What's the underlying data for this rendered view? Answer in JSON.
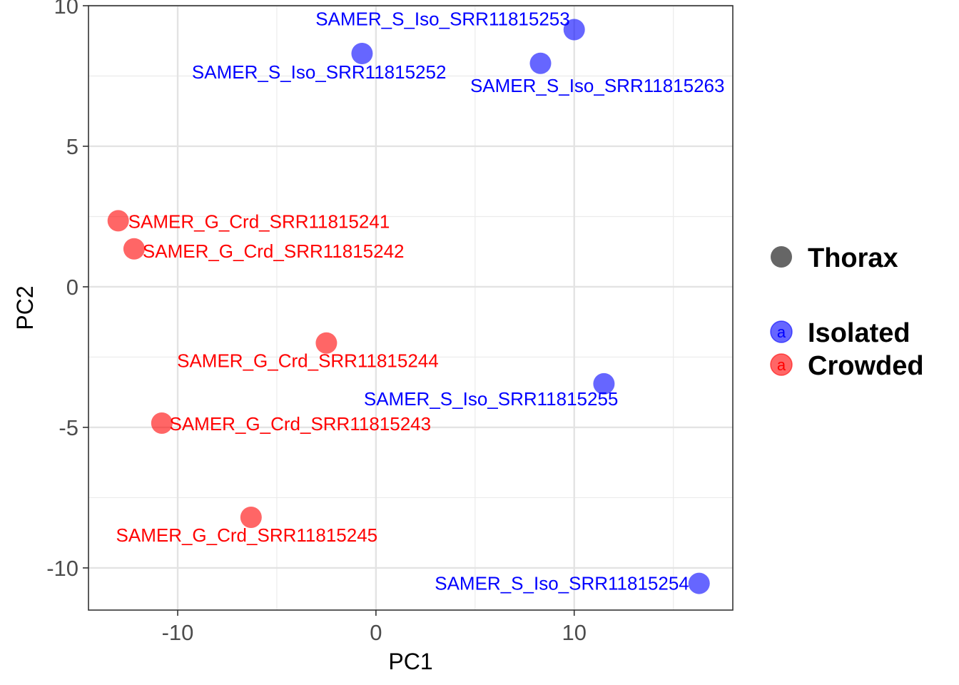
{
  "chart_data": {
    "type": "scatter",
    "xlabel": "PC1",
    "ylabel": "PC2",
    "xlim": [
      -14.5,
      18
    ],
    "ylim": [
      -11.5,
      10
    ],
    "xticks": [
      -10,
      0,
      10
    ],
    "yticks": [
      -10,
      -5,
      0,
      5,
      10
    ],
    "xtick_labels": [
      "-10",
      "0",
      "10"
    ],
    "ytick_labels": [
      "-10",
      "-5",
      "0",
      "5",
      "10"
    ],
    "grid": true,
    "legend": {
      "position": "right",
      "shape_title": "Thorax",
      "groups": [
        {
          "name": "Isolated",
          "color": "#0000ff",
          "key": "a"
        },
        {
          "name": "Crowded",
          "color": "#ff0000",
          "key": "a"
        }
      ]
    },
    "points": [
      {
        "label": "SAMER_S_Iso_SRR11815253",
        "group": "Isolated",
        "x": 10.0,
        "y": 9.15
      },
      {
        "label": "SAMER_S_Iso_SRR11815252",
        "group": "Isolated",
        "x": -0.7,
        "y": 8.3
      },
      {
        "label": "SAMER_S_Iso_SRR11815263",
        "group": "Isolated",
        "x": 8.3,
        "y": 7.95
      },
      {
        "label": "SAMER_G_Crd_SRR11815241",
        "group": "Crowded",
        "x": -13.0,
        "y": 2.35
      },
      {
        "label": "SAMER_G_Crd_SRR11815242",
        "group": "Crowded",
        "x": -12.2,
        "y": 1.35
      },
      {
        "label": "SAMER_G_Crd_SRR11815244",
        "group": "Crowded",
        "x": -2.5,
        "y": -2.0
      },
      {
        "label": "SAMER_S_Iso_SRR11815255",
        "group": "Isolated",
        "x": 11.5,
        "y": -3.45
      },
      {
        "label": "SAMER_G_Crd_SRR11815243",
        "group": "Crowded",
        "x": -10.8,
        "y": -4.85
      },
      {
        "label": "SAMER_G_Crd_SRR11815245",
        "group": "Crowded",
        "x": -6.3,
        "y": -8.2
      },
      {
        "label": "SAMER_S_Iso_SRR11815254",
        "group": "Isolated",
        "x": 16.3,
        "y": -10.55
      }
    ]
  }
}
